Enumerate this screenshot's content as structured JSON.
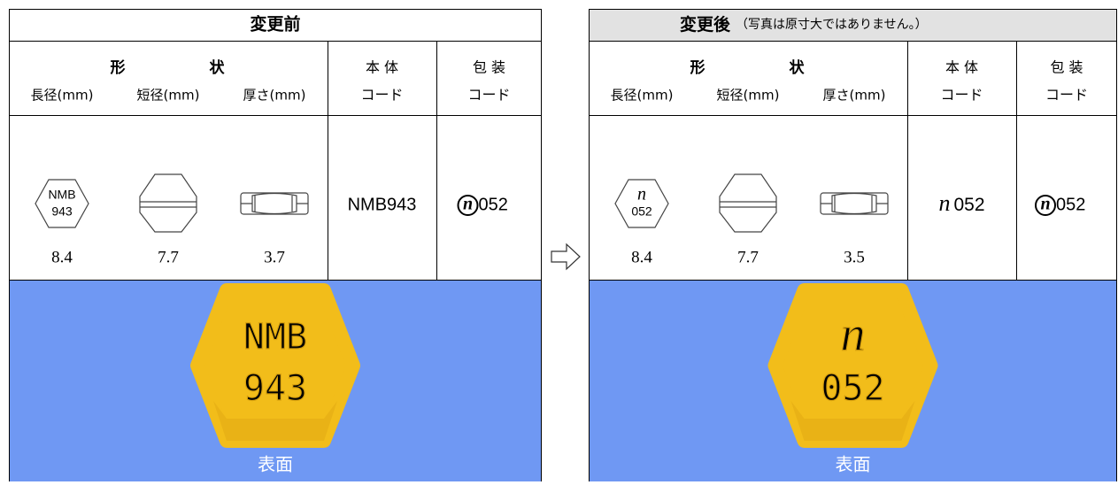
{
  "panels": [
    {
      "title": "変更前",
      "shape_header": [
        "形",
        "状"
      ],
      "dimension_headers": [
        "長径(mm)",
        "短径(mm)",
        "厚さ(mm)"
      ],
      "body_header": [
        "本 体",
        "コード"
      ],
      "package_header": [
        "包 装",
        "コード"
      ],
      "imprint": [
        "NMB",
        "943"
      ],
      "dimensions": [
        8.4,
        7.7,
        3.7
      ],
      "body_code": "NMB943",
      "package_mark": "n",
      "package_code": "052",
      "photo_imprint": [
        "NMB",
        "943"
      ],
      "photo_caption": "表面"
    },
    {
      "title": "変更後",
      "note": "（写真は原寸大ではありません。）",
      "shape_header": [
        "形",
        "状"
      ],
      "dimension_headers": [
        "長径(mm)",
        "短径(mm)",
        "厚さ(mm)"
      ],
      "body_header": [
        "本 体",
        "コード"
      ],
      "package_header": [
        "包 装",
        "コード"
      ],
      "imprint": [
        "n",
        "052"
      ],
      "dimensions": [
        8.4,
        7.7,
        3.5
      ],
      "body_code_mark": "n",
      "body_code": "052",
      "package_mark": "n",
      "package_code": "052",
      "photo_imprint": [
        "n",
        "052"
      ],
      "photo_caption": "表面"
    }
  ]
}
